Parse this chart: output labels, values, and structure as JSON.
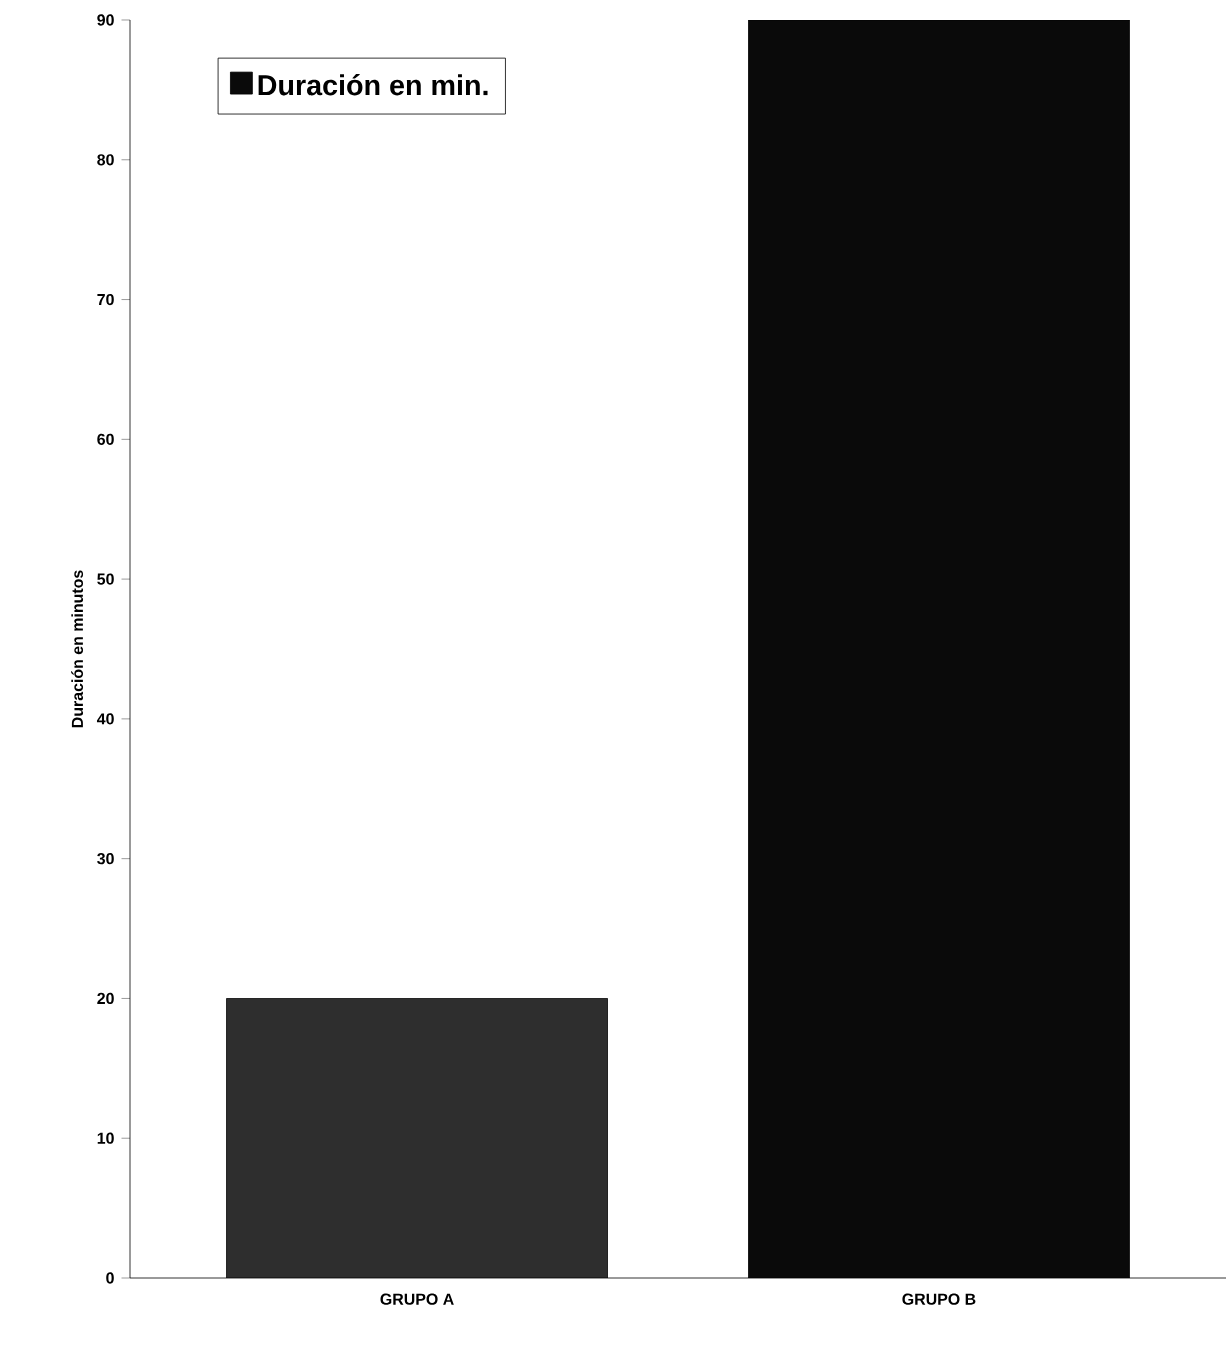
{
  "chart_data": {
    "type": "bar",
    "ylabel": "Duración en minutos",
    "categories": [
      "GRUPO A",
      "GRUPO B"
    ],
    "series": [
      {
        "name": "Duración en min.",
        "colors": [
          "#2e2e2e",
          "#0a0a0a"
        ],
        "values": [
          20,
          90
        ]
      }
    ],
    "ylim": [
      0,
      90
    ],
    "yticks": [
      0,
      10,
      20,
      30,
      40,
      50,
      60,
      70,
      80,
      90
    ],
    "legend": "top left",
    "grid": false
  }
}
